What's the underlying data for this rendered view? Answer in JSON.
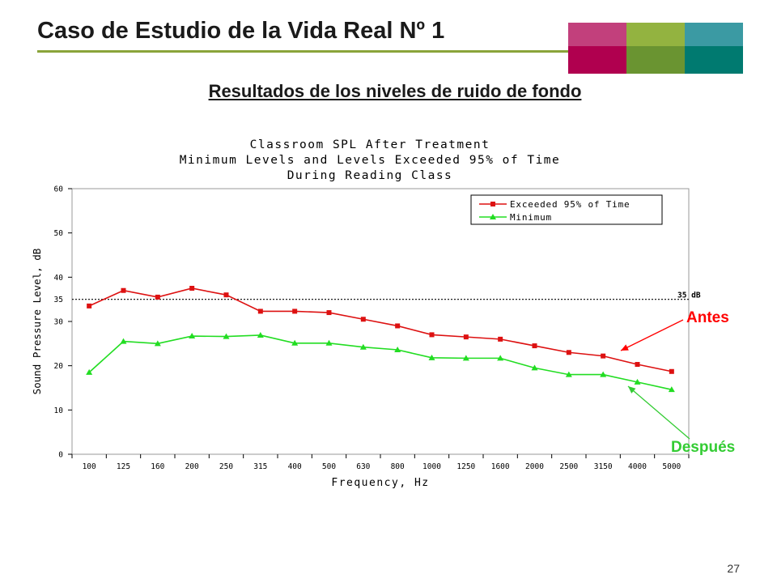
{
  "slide": {
    "title": "Caso de Estudio de la Vida Real Nº 1",
    "subtitle": "Resultados de los niveles de ruido de fondo",
    "page_number": "27",
    "swatches_top": [
      "#c2407c",
      "#93b340",
      "#3b9aa3"
    ],
    "swatches_bottom": [
      "#b0004f",
      "#6a9431",
      "#007a70"
    ],
    "accent_rule": "#8aa43a"
  },
  "callouts": {
    "antes": "Antes",
    "despues": "Después",
    "antes_color": "#ff0000",
    "despues_color": "#33cc33"
  },
  "chart_data": {
    "type": "line",
    "title_lines": [
      "Classroom SPL After Treatment",
      "Minimum Levels and Levels Exceeded 95% of Time",
      "During Reading Class"
    ],
    "xlabel": "Frequency, Hz",
    "ylabel": "Sound Pressure Level, dB",
    "categories": [
      "100",
      "125",
      "160",
      "200",
      "250",
      "315",
      "400",
      "500",
      "630",
      "800",
      "1000",
      "1250",
      "1600",
      "2000",
      "2500",
      "3150",
      "4000",
      "5000"
    ],
    "ylim": [
      0,
      60
    ],
    "yticks": [
      0,
      10,
      20,
      30,
      40,
      50,
      60
    ],
    "reference_line": {
      "value": 35,
      "label": "35 dB",
      "tick_label": "35"
    },
    "legend_position": "top-right",
    "grid": false,
    "series": [
      {
        "name": "Exceeded 95% of Time",
        "color": "#dd1111",
        "marker": "square",
        "values": [
          33.5,
          37.0,
          35.5,
          37.5,
          36.0,
          32.3,
          32.3,
          32.0,
          30.5,
          29.0,
          27.0,
          26.5,
          26.0,
          24.5,
          23.0,
          22.2,
          20.3,
          18.7
        ]
      },
      {
        "name": "Minimum",
        "color": "#22dd22",
        "marker": "triangle",
        "values": [
          18.5,
          25.5,
          25.0,
          26.7,
          26.6,
          26.9,
          25.1,
          25.1,
          24.2,
          23.6,
          21.8,
          21.7,
          21.7,
          19.5,
          18.0,
          18.0,
          16.3,
          14.6
        ]
      }
    ]
  }
}
